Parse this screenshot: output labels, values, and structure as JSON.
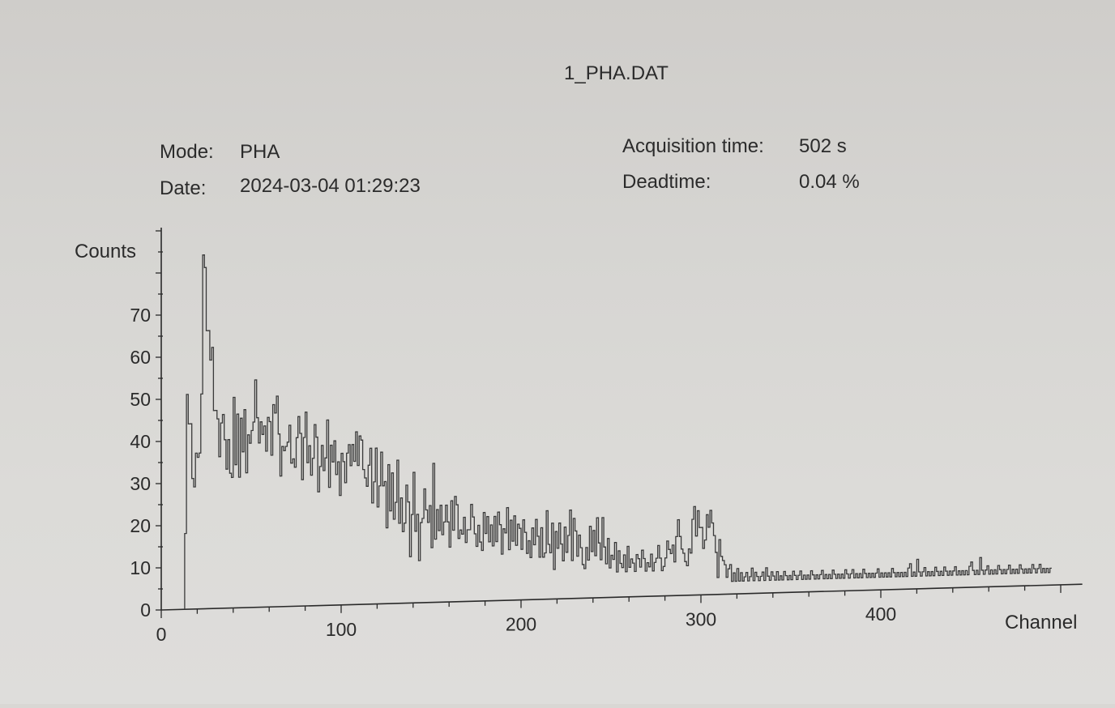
{
  "header": {
    "file_title": "1_PHA.DAT",
    "mode_label": "Mode:",
    "mode_value": "PHA",
    "date_label": "Date:",
    "date_value": "2024-03-04 01:29:23",
    "acq_label": "Acquisition time:",
    "acq_value": "502 s",
    "dead_label": "Deadtime:",
    "dead_value": "0.04 %"
  },
  "chart_data": {
    "type": "line",
    "title": "1_PHA.DAT",
    "xlabel": "Channel",
    "ylabel": "Counts",
    "xlim": [
      0,
      512
    ],
    "ylim": [
      0,
      85
    ],
    "x_ticks": [
      0,
      100,
      200,
      300,
      400
    ],
    "y_ticks": [
      0,
      10,
      20,
      30,
      40,
      50,
      60,
      70
    ],
    "grid": false,
    "series": [
      {
        "name": "",
        "x_start": 13,
        "x_step": 1,
        "values": [
          18,
          51,
          44,
          44,
          31,
          29,
          37,
          36,
          37,
          51,
          84,
          81,
          66,
          66,
          59,
          62,
          47,
          47,
          45,
          36,
          44,
          46,
          40,
          33,
          40,
          32,
          31,
          50,
          34,
          46,
          31,
          45,
          37,
          47,
          32,
          41,
          39,
          42,
          44,
          54,
          45,
          39,
          44,
          41,
          43,
          37,
          45,
          44,
          36,
          48,
          46,
          50,
          41,
          31,
          38,
          37,
          38,
          39,
          43,
          34,
          35,
          33,
          40,
          45,
          41,
          30,
          40,
          46,
          34,
          38,
          31,
          35,
          43,
          40,
          27,
          33,
          38,
          32,
          35,
          44,
          28,
          38,
          34,
          39,
          31,
          34,
          26,
          36,
          34,
          29,
          36,
          38,
          33,
          38,
          34,
          41,
          33,
          40,
          39,
          32,
          30,
          28,
          33,
          37,
          24,
          29,
          37,
          23,
          28,
          36,
          28,
          29,
          18,
          33,
          22,
          31,
          20,
          24,
          34,
          19,
          25,
          17,
          19,
          28,
          24,
          11,
          21,
          31,
          17,
          21,
          10,
          19,
          20,
          27,
          22,
          19,
          23,
          13,
          33,
          15,
          22,
          17,
          23,
          16,
          19,
          23,
          19,
          13,
          24,
          17,
          25,
          23,
          15,
          17,
          16,
          20,
          14,
          17,
          17,
          23,
          20,
          16,
          13,
          18,
          14,
          12,
          21,
          16,
          20,
          14,
          18,
          13,
          20,
          14,
          21,
          18,
          11,
          17,
          16,
          22,
          12,
          19,
          14,
          20,
          13,
          18,
          17,
          12,
          19,
          16,
          11,
          14,
          10,
          17,
          13,
          19,
          15,
          10,
          17,
          10,
          11,
          21,
          13,
          11,
          18,
          7,
          16,
          12,
          18,
          13,
          9,
          17,
          11,
          15,
          21,
          9,
          19,
          16,
          10,
          15,
          12,
          8,
          7,
          12,
          9,
          17,
          11,
          16,
          10,
          19,
          13,
          9,
          19,
          12,
          8,
          14,
          7,
          10,
          9,
          13,
          6,
          11,
          8,
          7,
          10,
          6,
          12,
          7,
          9,
          8,
          6,
          10,
          9,
          7,
          11,
          9,
          6,
          8,
          7,
          10,
          6,
          8,
          9,
          12,
          9,
          6,
          7,
          9,
          13,
          11,
          10,
          12,
          8,
          14,
          18,
          14,
          11,
          10,
          8,
          7,
          11,
          10,
          18,
          21,
          14,
          20,
          16,
          16,
          11,
          13,
          19,
          16,
          20,
          17,
          14,
          10,
          4,
          13,
          9,
          8,
          7,
          4,
          6,
          7,
          3,
          5,
          3,
          6,
          3,
          5,
          3,
          4,
          5,
          3,
          4,
          6,
          3,
          5,
          4,
          3,
          4,
          5,
          3,
          6,
          4,
          3,
          5,
          4,
          3,
          5,
          3,
          4,
          3,
          5,
          4,
          3,
          4,
          3,
          5,
          4,
          3,
          4,
          5,
          3,
          4,
          3,
          4,
          3,
          5,
          4,
          3,
          4,
          3,
          4,
          5,
          3,
          4,
          3,
          4,
          3,
          5,
          4,
          3,
          4,
          3,
          4,
          3,
          5,
          4,
          3,
          4,
          5,
          3,
          4,
          3,
          4,
          3,
          5,
          4,
          3,
          4,
          3,
          4,
          3,
          4,
          5,
          3,
          4,
          3,
          4,
          3,
          4,
          3,
          5,
          4,
          3,
          4,
          3,
          4,
          3,
          4,
          3,
          5,
          6,
          3,
          4,
          3,
          7,
          4,
          3,
          4,
          5,
          3,
          4,
          3,
          4,
          3,
          5,
          4,
          3,
          4,
          3,
          5,
          4,
          3,
          4,
          3,
          4,
          5,
          3,
          4,
          3,
          4,
          3,
          4,
          3,
          5,
          6,
          4,
          3,
          4,
          3,
          7,
          4,
          3,
          4,
          5,
          3,
          4,
          3,
          4,
          3,
          5,
          4,
          3,
          4,
          3,
          4,
          5,
          3,
          4,
          3,
          4,
          3,
          5,
          4,
          3,
          4,
          3,
          4,
          3,
          5,
          4,
          3,
          4,
          5,
          3,
          4,
          3,
          4,
          3,
          4
        ]
      }
    ]
  }
}
